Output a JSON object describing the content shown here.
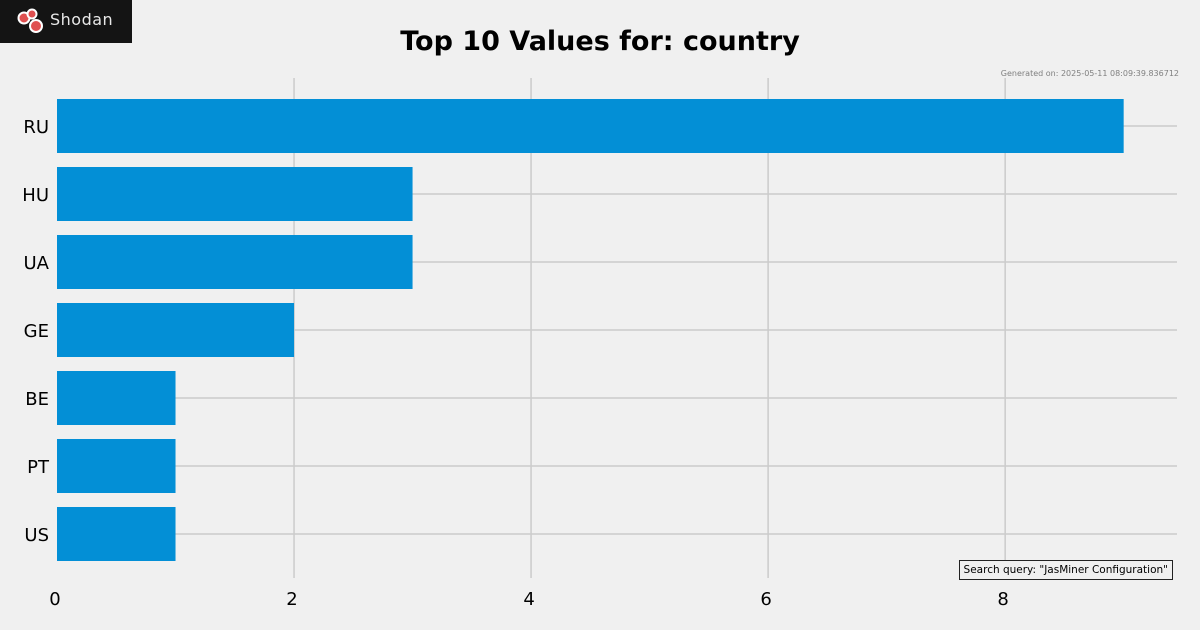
{
  "branding": {
    "logo_text": "Shodan",
    "logo_icon": "shodan-logo-icon"
  },
  "meta": {
    "generated": "Generated on: 2025-05-11 08:09:39.836712"
  },
  "search": {
    "query_label": "Search query: \"JasMiner Configuration\""
  },
  "colors": {
    "bar": "#038fd6",
    "background": "#f0f0f0",
    "grid": "#cbcbcb"
  },
  "chart_data": {
    "type": "bar",
    "orientation": "horizontal",
    "title": "Top 10 Values for: country",
    "xlabel": "",
    "ylabel": "",
    "categories": [
      "RU",
      "HU",
      "UA",
      "GE",
      "BE",
      "PT",
      "US"
    ],
    "values": [
      9,
      3,
      3,
      2,
      1,
      1,
      1
    ],
    "xlim": [
      0,
      9.45
    ],
    "xticks": [
      0,
      2,
      4,
      6,
      8
    ],
    "grid": true
  }
}
